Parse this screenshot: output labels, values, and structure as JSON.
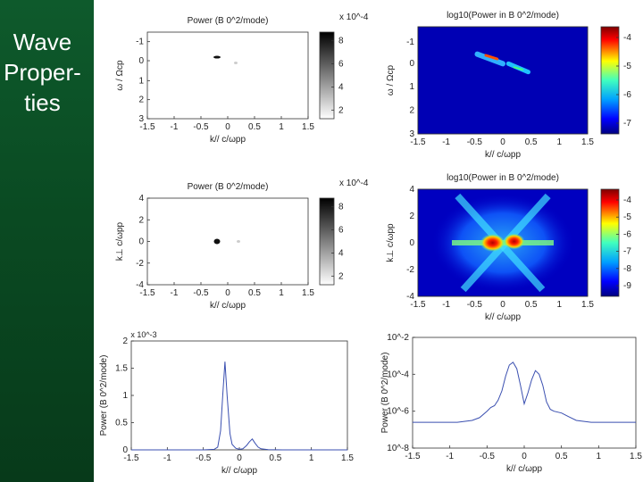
{
  "slide": {
    "title_lines": [
      "Wave",
      "Proper-",
      "ties"
    ]
  },
  "colors": {
    "sidebar": "#0a4a22",
    "title_text": "#ffffff",
    "line_series": "#3a4fb0"
  },
  "chart_data": [
    {
      "id": "panel-a",
      "type": "heatmap",
      "title": "Power (B 0^2/mode)",
      "xlabel": "k// c/ωpp",
      "ylabel": "ω / Ωcp",
      "xlim": [
        -1.5,
        1.5
      ],
      "ylim": [
        -1.5,
        3
      ],
      "xticks": [
        "-1.5",
        "-1",
        "-0.5",
        "0",
        "0.5",
        "1",
        "1.5"
      ],
      "yticks": [
        "-1",
        "0",
        "1",
        "2",
        "3"
      ],
      "colorbar": {
        "label": "x 10^-4",
        "ticks": [
          "8",
          "6",
          "4",
          "2"
        ],
        "map": "gray"
      },
      "features": [
        {
          "k": -0.2,
          "w": -0.2,
          "intensity": 1.0
        },
        {
          "k": 0.15,
          "w": 0.1,
          "intensity": 0.1
        }
      ]
    },
    {
      "id": "panel-b",
      "type": "heatmap",
      "title": "log10(Power in B 0^2/mode)",
      "xlabel": "k// c/ωpp",
      "ylabel": "ω / Ωcp",
      "xlim": [
        -1.5,
        1.5
      ],
      "ylim": [
        -1.5,
        3
      ],
      "xticks": [
        "-1.5",
        "-1",
        "-0.5",
        "0",
        "0.5",
        "1",
        "1.5"
      ],
      "yticks": [
        "-1",
        "0",
        "1",
        "2",
        "3"
      ],
      "colorbar": {
        "ticks": [
          "-4",
          "-5",
          "-6",
          "-7"
        ],
        "map": "jet"
      }
    },
    {
      "id": "panel-c",
      "type": "heatmap",
      "title": "Power (B 0^2/mode)",
      "xlabel": "k// c/ωpp",
      "ylabel": "k⊥ c/ωpp",
      "xlim": [
        -1.5,
        1.5
      ],
      "ylim": [
        -4,
        4
      ],
      "xticks": [
        "-1.5",
        "-1",
        "-0.5",
        "0",
        "0.5",
        "1",
        "1.5"
      ],
      "yticks": [
        "4",
        "2",
        "0",
        "-2",
        "-4"
      ],
      "colorbar": {
        "label": "x 10^-4",
        "ticks": [
          "8",
          "6",
          "4",
          "2"
        ],
        "map": "gray"
      },
      "features": [
        {
          "k": -0.2,
          "kperp": 0,
          "intensity": 1.0
        },
        {
          "k": 0.2,
          "kperp": 0,
          "intensity": 0.1
        }
      ]
    },
    {
      "id": "panel-d",
      "type": "heatmap",
      "title": "log10(Power in B 0^2/mode)",
      "xlabel": "k// c/ωpp",
      "ylabel": "k⊥ c/ωpp",
      "xlim": [
        -1.5,
        1.5
      ],
      "ylim": [
        -4,
        4
      ],
      "xticks": [
        "-1.5",
        "-1",
        "-0.5",
        "0",
        "0.5",
        "1",
        "1.5"
      ],
      "yticks": [
        "4",
        "2",
        "0",
        "-2",
        "-4"
      ],
      "colorbar": {
        "ticks": [
          "-4",
          "-5",
          "-6",
          "-7",
          "-8",
          "-9"
        ],
        "map": "jet"
      }
    },
    {
      "id": "panel-e",
      "type": "line",
      "title": "",
      "xlabel": "k// c/ωpp",
      "ylabel": "Power (B 0^2/mode)",
      "y_exponent": "x 10^-3",
      "xlim": [
        -1.5,
        1.5
      ],
      "ylim": [
        0,
        2
      ],
      "xticks": [
        "-1.5",
        "-1",
        "-0.5",
        "0",
        "0.5",
        "1",
        "1.5"
      ],
      "yticks": [
        "2",
        "1.5",
        "1",
        "0.5",
        "0"
      ],
      "x": [
        -1.5,
        -1.0,
        -0.5,
        -0.35,
        -0.3,
        -0.26,
        -0.23,
        -0.2,
        -0.17,
        -0.13,
        -0.1,
        -0.05,
        0,
        0.05,
        0.1,
        0.14,
        0.18,
        0.22,
        0.26,
        0.3,
        0.4,
        0.6,
        1.0,
        1.5
      ],
      "y": [
        0,
        0,
        0,
        0.01,
        0.05,
        0.35,
        1.0,
        1.62,
        1.0,
        0.3,
        0.1,
        0.03,
        0.01,
        0.02,
        0.08,
        0.15,
        0.2,
        0.12,
        0.05,
        0.02,
        0.005,
        0,
        0,
        0
      ]
    },
    {
      "id": "panel-f",
      "type": "line",
      "yscale": "log",
      "title": "",
      "xlabel": "k// c/ωpp",
      "ylabel": "Power (B 0^2/mode)",
      "xlim": [
        -1.5,
        1.5
      ],
      "ylim_exp": [
        -8,
        -2
      ],
      "xticks": [
        "-1.5",
        "-1",
        "-0.5",
        "0",
        "0.5",
        "1",
        "1.5"
      ],
      "yticks": [
        "10^-2",
        "10^-4",
        "10^-6",
        "10^-8"
      ],
      "x": [
        -1.5,
        -1.2,
        -0.9,
        -0.7,
        -0.6,
        -0.5,
        -0.45,
        -0.4,
        -0.35,
        -0.3,
        -0.25,
        -0.2,
        -0.15,
        -0.1,
        -0.05,
        0,
        0.05,
        0.1,
        0.15,
        0.2,
        0.25,
        0.3,
        0.35,
        0.4,
        0.5,
        0.6,
        0.7,
        0.9,
        1.2,
        1.5
      ],
      "y": [
        -6.6,
        -6.6,
        -6.6,
        -6.5,
        -6.35,
        -6.0,
        -5.8,
        -5.7,
        -5.4,
        -4.9,
        -4.1,
        -3.5,
        -3.35,
        -3.7,
        -4.6,
        -5.6,
        -5.0,
        -4.3,
        -3.8,
        -4.0,
        -4.6,
        -5.5,
        -5.9,
        -6.0,
        -6.1,
        -6.3,
        -6.5,
        -6.6,
        -6.6,
        -6.6
      ]
    }
  ]
}
